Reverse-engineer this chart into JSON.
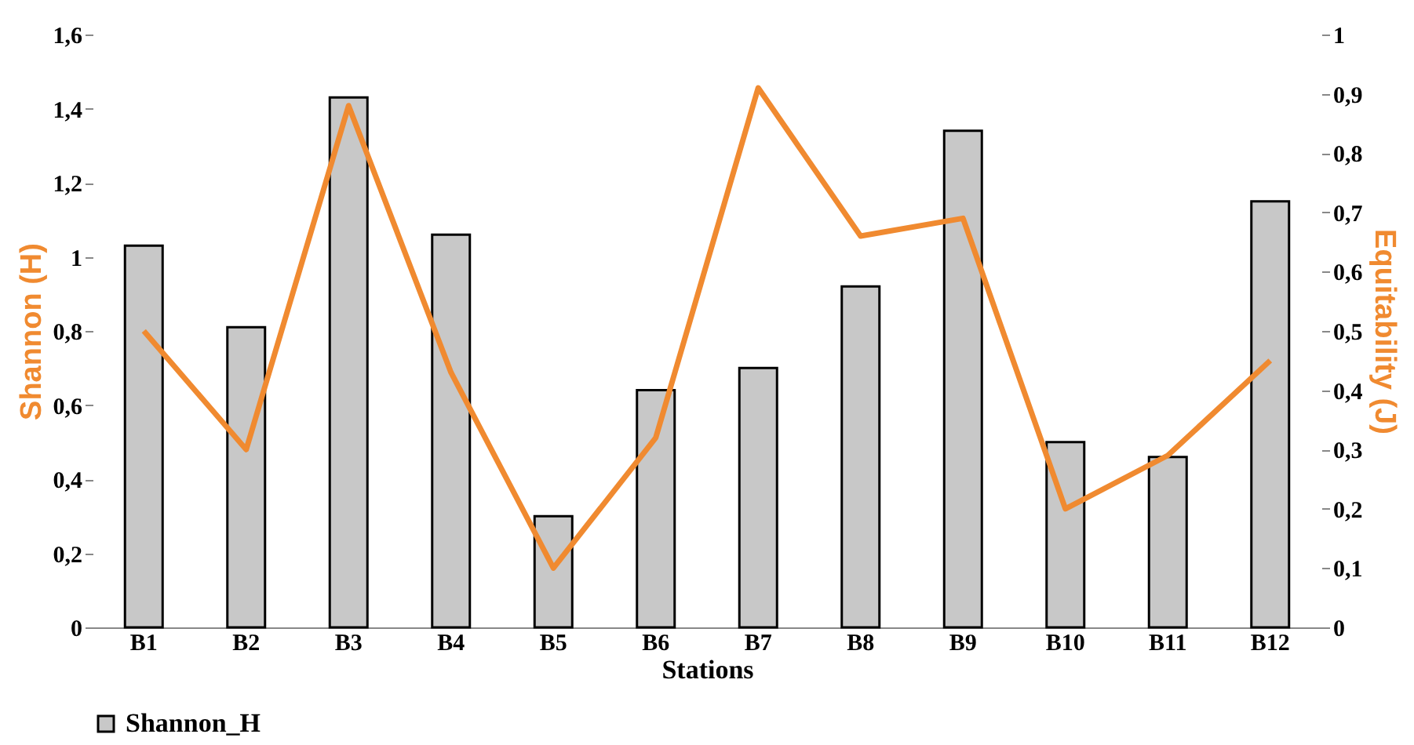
{
  "chart_data": {
    "type": "bar",
    "xlabel": "Stations",
    "ylabel": "Shannon (H)",
    "y2label": "Equitability (J)",
    "categories": [
      "B1",
      "B2",
      "B3",
      "B4",
      "B5",
      "B6",
      "B7",
      "B8",
      "B9",
      "B10",
      "B11",
      "B12"
    ],
    "series": [
      {
        "name": "Shannon_H",
        "color": "#c8c8c8",
        "values": [
          1.03,
          0.81,
          1.43,
          1.06,
          0.3,
          0.64,
          0.7,
          0.92,
          1.34,
          0.5,
          0.46,
          1.15
        ]
      },
      {
        "type": "line",
        "axis": "y2",
        "color": "#f08a30",
        "values": [
          0.5,
          0.3,
          0.88,
          0.43,
          0.1,
          0.32,
          0.91,
          0.66,
          0.69,
          0.2,
          0.29,
          0.45
        ]
      }
    ],
    "ylim": [
      0,
      1.6
    ],
    "yticks": [
      0,
      {
        "value": 0.2,
        "label": "0,2"
      },
      {
        "value": 0.4,
        "label": "0,4"
      },
      {
        "value": 0.6,
        "label": "0,6"
      },
      {
        "value": 0.8,
        "label": "0,8"
      },
      1,
      {
        "value": 1.2,
        "label": "1,2"
      },
      {
        "value": 1.4,
        "label": "1,4"
      },
      {
        "value": 1.6,
        "label": "1,6"
      }
    ],
    "y2lim": [
      0,
      1
    ],
    "y2ticks": [
      0,
      {
        "value": 0.1,
        "label": "0,1"
      },
      {
        "value": 0.2,
        "label": "0,2"
      },
      {
        "value": 0.3,
        "label": "0,3"
      },
      {
        "value": 0.4,
        "label": "0,4"
      },
      {
        "value": 0.5,
        "label": "0,5"
      },
      {
        "value": 0.6,
        "label": "0,6"
      },
      {
        "value": 0.7,
        "label": "0,7"
      },
      {
        "value": 0.8,
        "label": "0,8"
      },
      {
        "value": 0.9,
        "label": "0,9"
      },
      1
    ],
    "legend": "bottom",
    "grid": false,
    "line_style": "solid",
    "marker": "none"
  }
}
